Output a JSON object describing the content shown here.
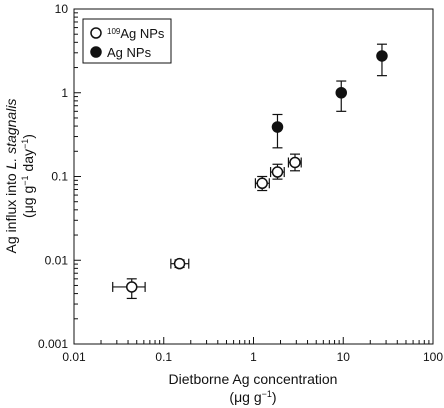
{
  "chart_data": {
    "type": "scatter",
    "xscale": "log",
    "yscale": "log",
    "xlim": [
      0.01,
      100
    ],
    "ylim": [
      0.001,
      10
    ],
    "x_ticks": [
      0.01,
      0.1,
      1,
      10,
      100
    ],
    "x_tick_labels": [
      "0.01",
      "0.1",
      "1",
      "10",
      "100"
    ],
    "y_ticks": [
      0.001,
      0.01,
      0.1,
      1,
      10
    ],
    "y_tick_labels": [
      "0.001",
      "0.01",
      "0.1",
      "1",
      "10"
    ],
    "xlabel": {
      "line1": "Dietborne Ag concentration",
      "line2_pre": "(μg g",
      "line2_sup": "−1",
      "line2_post": ")"
    },
    "ylabel": {
      "line1_pre": "Ag influx into ",
      "line1_italic": "L. stagnalis",
      "line2_pre": "(μg g",
      "line2_sup1": "−1",
      "line2_mid": " day",
      "line2_sup2": "−1",
      "line2_post": ")"
    },
    "legend_position": "top-left",
    "grid": false,
    "series": [
      {
        "name_sup": "109",
        "name_main": "Ag NPs",
        "marker": "open-circle",
        "color": "#111111",
        "points": [
          {
            "x": 0.044,
            "y": 0.0048,
            "xerr": [
              0.027,
              0.062
            ],
            "yerr": [
              0.0035,
              0.006
            ]
          },
          {
            "x": 0.15,
            "y": 0.0091,
            "xerr": [
              0.12,
              0.19
            ],
            "yerr": [
              0.0082,
              0.0101
            ]
          },
          {
            "x": 1.25,
            "y": 0.083,
            "xerr": [
              1.05,
              1.5
            ],
            "yerr": [
              0.068,
              0.1
            ]
          },
          {
            "x": 1.85,
            "y": 0.113,
            "xerr": [
              1.55,
              2.2
            ],
            "yerr": [
              0.093,
              0.14
            ]
          },
          {
            "x": 2.9,
            "y": 0.147,
            "xerr": [
              2.45,
              3.4
            ],
            "yerr": [
              0.117,
              0.185
            ]
          }
        ]
      },
      {
        "name_sup": "",
        "name_main": "Ag NPs",
        "marker": "filled-circle",
        "color": "#111111",
        "points": [
          {
            "x": 1.85,
            "y": 0.39,
            "yerr": [
              0.22,
              0.55
            ]
          },
          {
            "x": 9.5,
            "y": 1.0,
            "yerr": [
              0.6,
              1.38
            ]
          },
          {
            "x": 27,
            "y": 2.75,
            "yerr": [
              1.6,
              3.8
            ]
          }
        ]
      }
    ]
  }
}
